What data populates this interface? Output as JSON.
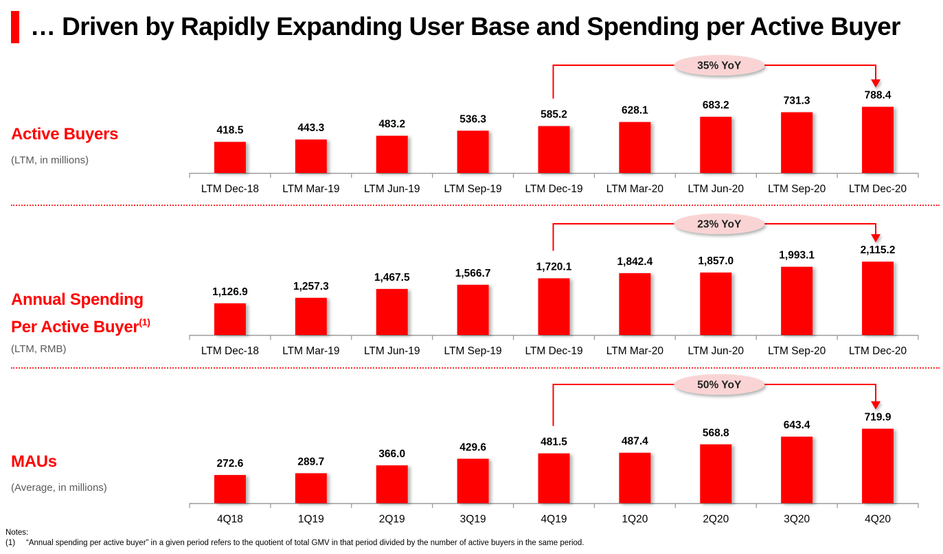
{
  "page": {
    "title": "… Driven by Rapidly Expanding User Base and Spending per Active Buyer",
    "accent_color": "#ff0000",
    "notes_heading": "Notes:",
    "notes": [
      {
        "marker": "(1)",
        "text": "“Annual spending per active buyer” in a given period refers to the quotient of total GMV in that period divided by the number of active buyers in the same period."
      }
    ]
  },
  "sections": [
    {
      "label": "Active Buyers",
      "superscript": "",
      "sublabel": "(LTM, in millions)"
    },
    {
      "label_line1": "Annual Spending",
      "label_line2": "Per Active Buyer",
      "superscript": "(1)",
      "sublabel": "(LTM, RMB)"
    },
    {
      "label": "MAUs",
      "superscript": "",
      "sublabel": "(Average, in millions)"
    }
  ],
  "chart_data": [
    {
      "type": "bar",
      "title": "Active Buyers",
      "subtitle": "(LTM, in millions)",
      "xlabel": "",
      "ylabel": "",
      "categories": [
        "LTM Dec-18",
        "LTM Mar-19",
        "LTM Jun-19",
        "LTM Sep-19",
        "LTM Dec-19",
        "LTM Mar-20",
        "LTM Jun-20",
        "LTM Sep-20",
        "LTM Dec-20"
      ],
      "values": [
        418.5,
        443.3,
        483.2,
        536.3,
        585.2,
        628.1,
        683.2,
        731.3,
        788.4
      ],
      "data_labels": [
        "418.5",
        "443.3",
        "483.2",
        "536.3",
        "585.2",
        "628.1",
        "683.2",
        "731.3",
        "788.4"
      ],
      "ylim": [
        90,
        800
      ],
      "grid": false,
      "bar_color": "#ff0000",
      "annotation": {
        "text": "35% YoY",
        "from_index": 4,
        "to_index": 8
      }
    },
    {
      "type": "bar",
      "title": "Annual Spending Per Active Buyer(1)",
      "subtitle": "(LTM, RMB)",
      "xlabel": "",
      "ylabel": "",
      "categories": [
        "LTM Dec-18",
        "LTM Mar-19",
        "LTM Jun-19",
        "LTM Sep-19",
        "LTM Dec-19",
        "LTM Mar-20",
        "LTM Jun-20",
        "LTM Sep-20",
        "LTM Dec-20"
      ],
      "values": [
        1126.9,
        1257.3,
        1467.5,
        1566.7,
        1720.1,
        1842.4,
        1857.0,
        1993.1,
        2115.2
      ],
      "data_labels": [
        "1,126.9",
        "1,257.3",
        "1,467.5",
        "1,566.7",
        "1,720.1",
        "1,842.4",
        "1,857.0",
        "1,993.1",
        "2,115.2"
      ],
      "ylim": [
        375,
        2150
      ],
      "grid": false,
      "bar_color": "#ff0000",
      "annotation": {
        "text": "23% YoY",
        "from_index": 4,
        "to_index": 8
      }
    },
    {
      "type": "bar",
      "title": "MAUs",
      "subtitle": "(Average, in millions)",
      "xlabel": "",
      "ylabel": "",
      "categories": [
        "4Q18",
        "1Q19",
        "2Q19",
        "3Q19",
        "4Q19",
        "1Q20",
        "2Q20",
        "3Q20",
        "4Q20"
      ],
      "values": [
        272.6,
        289.7,
        366.0,
        429.6,
        481.5,
        487.4,
        568.8,
        643.4,
        719.9
      ],
      "data_labels": [
        "272.6",
        "289.7",
        "366.0",
        "429.6",
        "481.5",
        "487.4",
        "568.8",
        "643.4",
        "719.9"
      ],
      "ylim": [
        0,
        730
      ],
      "grid": false,
      "bar_color": "#ff0000",
      "annotation": {
        "text": "50% YoY",
        "from_index": 4,
        "to_index": 8
      }
    }
  ]
}
